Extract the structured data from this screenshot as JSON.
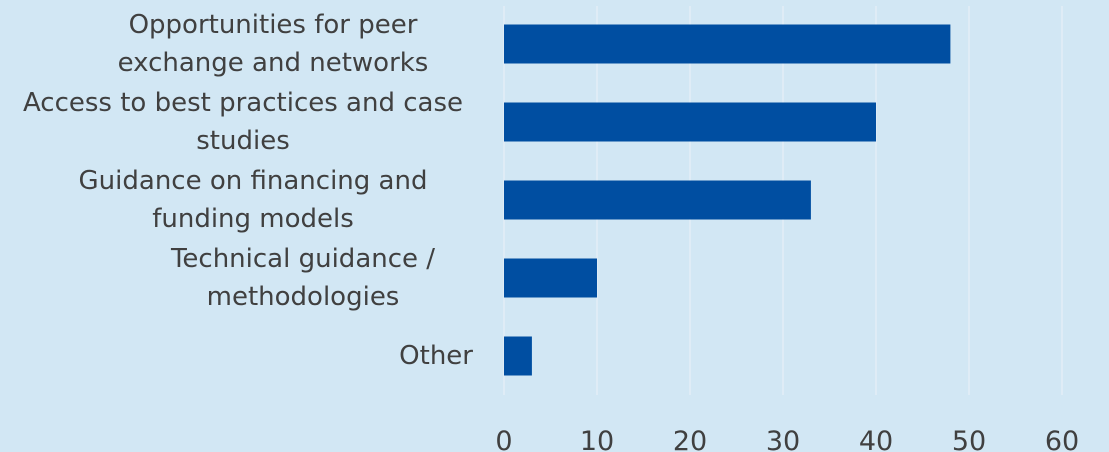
{
  "chart_data": {
    "type": "bar",
    "orientation": "horizontal",
    "categories": [
      "Opportunities for peer exchange and networks",
      "Access to best practices and case studies",
      "Guidance on financing and funding models",
      "Technical guidance / methodologies",
      "Other"
    ],
    "values": [
      48,
      40,
      33,
      10,
      3
    ],
    "color": "#004ea1",
    "xlim": [
      0,
      60
    ],
    "xticks": [
      0,
      10,
      20,
      30,
      40,
      50,
      60
    ],
    "grid": true
  }
}
